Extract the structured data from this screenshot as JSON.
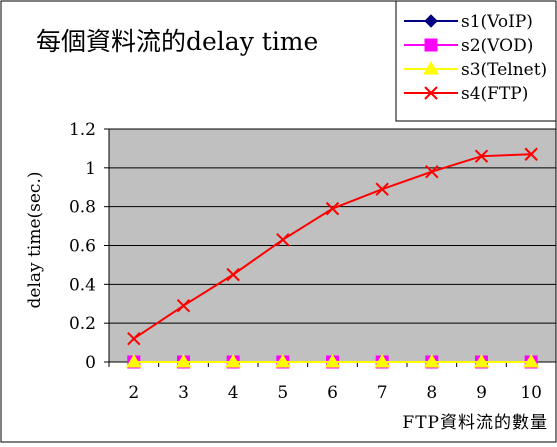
{
  "chart_data": {
    "type": "line",
    "title": "每個資料流的delay time",
    "xlabel": "FTP資料流的數量",
    "ylabel": "delay time(sec.)",
    "categories": [
      "2",
      "3",
      "4",
      "5",
      "6",
      "7",
      "8",
      "9",
      "10"
    ],
    "ylim": [
      0,
      1.2
    ],
    "yticks": [
      "0",
      "0.2",
      "0.4",
      "0.6",
      "0.8",
      "1",
      "1.2"
    ],
    "grid": true,
    "legend_position": "top-right",
    "plot_background": "#c0c0c0",
    "series": [
      {
        "name": "s1(VoIP)",
        "color": "#000080",
        "marker": "diamond",
        "values": [
          0,
          0,
          0,
          0,
          0,
          0,
          0,
          0,
          0
        ]
      },
      {
        "name": "s2(VOD)",
        "color": "#ff00ff",
        "marker": "square",
        "values": [
          0,
          0,
          0,
          0,
          0,
          0,
          0,
          0,
          0
        ]
      },
      {
        "name": "s3(Telnet)",
        "color": "#ffff00",
        "marker": "triangle",
        "values": [
          0,
          0,
          0,
          0,
          0,
          0,
          0,
          0,
          0
        ]
      },
      {
        "name": "s4(FTP)",
        "color": "#ff0000",
        "marker": "x",
        "values": [
          0.12,
          0.29,
          0.45,
          0.63,
          0.79,
          0.89,
          0.98,
          1.06,
          1.07
        ]
      }
    ]
  }
}
